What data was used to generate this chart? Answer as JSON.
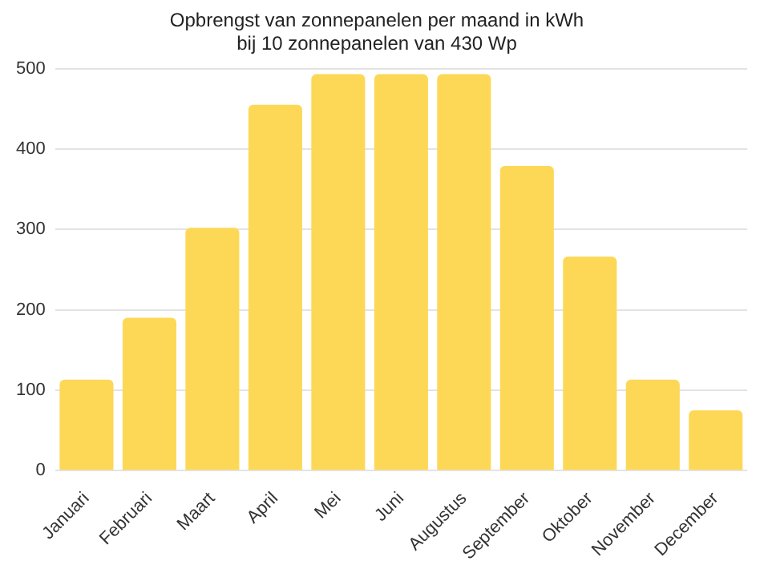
{
  "chart_data": {
    "type": "bar",
    "title": "Opbrengst van zonnepanelen per maand in kWh\nbij 10 zonnepanelen van 430 Wp",
    "categories": [
      "Januari",
      "Februari",
      "Maart",
      "April",
      "Mei",
      "Juni",
      "Augustus",
      "September",
      "Oktober",
      "November",
      "December"
    ],
    "values": [
      113,
      190,
      302,
      455,
      493,
      493,
      493,
      379,
      266,
      113,
      75
    ],
    "color": "#fdd856",
    "ylim": [
      0,
      500
    ],
    "yticks": [
      0,
      100,
      200,
      300,
      400,
      500
    ],
    "grid": "y",
    "legend": false
  }
}
